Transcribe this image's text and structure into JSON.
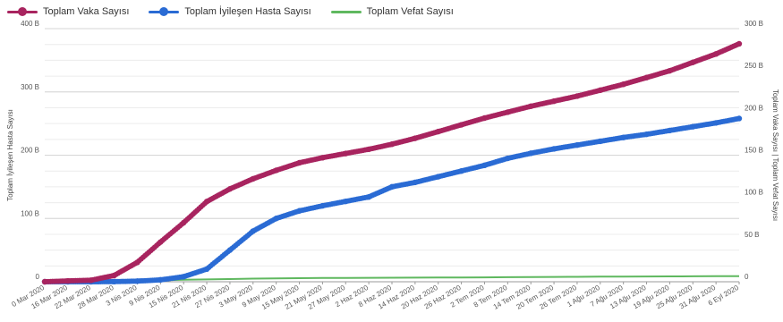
{
  "chart_data": {
    "type": "line",
    "legend_position": "top-left",
    "grid": true,
    "y_left_label": "Toplam İyileşen Hasta Sayısı",
    "y_right_label": "Toplam Vaka Sayısı | Toplam Vefat Sayısı",
    "y_left_ticks": [
      "0",
      "100 B",
      "200 B",
      "300 B",
      "400 B"
    ],
    "y_right_ticks": [
      "0",
      "50 B",
      "100 B",
      "150 B",
      "200 B",
      "250 B",
      "300 B"
    ],
    "y_left_range": [
      0,
      400000
    ],
    "y_right_range": [
      0,
      300000
    ],
    "x_labels": [
      "0 Mar 2020",
      "16 Mar 2020",
      "22 Mar 2020",
      "28 Mar 2020",
      "3 Nis 2020",
      "9 Nis 2020",
      "15 Nis 2020",
      "21 Nis 2020",
      "27 Nis 2020",
      "3 May 2020",
      "9 May 2020",
      "15 May 2020",
      "21 May 2020",
      "27 May 2020",
      "2 Haz 2020",
      "8 Haz 2020",
      "14 Haz 2020",
      "20 Haz 2020",
      "26 Haz 2020",
      "2 Tem 2020",
      "8 Tem 2020",
      "14 Tem 2020",
      "20 Tem 2020",
      "26 Tem 2020",
      "1 Ağu 2020",
      "7 Ağu 2020",
      "13 Ağu 2020",
      "19 Ağu 2020",
      "25 Ağu 2020",
      "31 Ağu 2020",
      "6 Eyl 2020"
    ],
    "series": [
      {
        "name": "Toplam Vaka Sayısı",
        "color": "#a8245f",
        "axis": "right",
        "marker": "dot",
        "values": [
          0,
          1000,
          1800,
          7500,
          23000,
          47000,
          70000,
          95000,
          110000,
          122000,
          132000,
          141000,
          147000,
          152000,
          157000,
          163000,
          170000,
          178000,
          186000,
          194000,
          201000,
          208000,
          214000,
          220000,
          227000,
          234000,
          242000,
          250000,
          260000,
          270000,
          282000
        ]
      },
      {
        "name": "Toplam İyileşen Hasta Sayısı",
        "color": "#2a6bd4",
        "axis": "left",
        "marker": "dot",
        "values": [
          0,
          0,
          0,
          200,
          1000,
          3000,
          8000,
          20000,
          50000,
          80000,
          100000,
          112000,
          120000,
          127000,
          134000,
          150000,
          157000,
          166000,
          175000,
          184000,
          195000,
          203000,
          210000,
          216000,
          222000,
          228000,
          233000,
          239000,
          245000,
          251000,
          258000
        ]
      },
      {
        "name": "Toplam Vefat Sayısı",
        "color": "#5fb85f",
        "axis": "right",
        "marker": "none",
        "values": [
          0,
          0,
          100,
          450,
          900,
          1700,
          2300,
          2800,
          3200,
          3700,
          4000,
          4200,
          4400,
          4500,
          4650,
          4800,
          4900,
          5000,
          5100,
          5200,
          5400,
          5550,
          5700,
          5850,
          6000,
          6100,
          6250,
          6400,
          6500,
          6600,
          6700
        ]
      }
    ]
  }
}
